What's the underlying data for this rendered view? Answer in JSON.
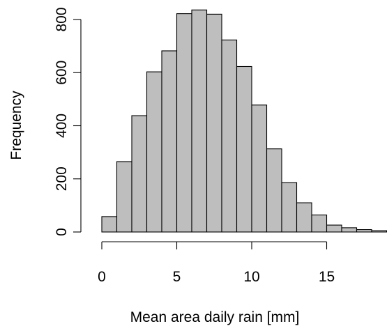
{
  "chart_data": {
    "type": "bar",
    "subtype": "histogram",
    "xlabel": "Mean area daily rain [mm]",
    "ylabel": "Frequency",
    "xlim": [
      0,
      18
    ],
    "ylim": [
      0,
      840
    ],
    "x_ticks": [
      0,
      5,
      10,
      15
    ],
    "x_tick_labels": [
      "0",
      "5",
      "10",
      "15"
    ],
    "y_ticks": [
      0,
      200,
      400,
      600,
      800
    ],
    "y_tick_labels": [
      "0",
      "200",
      "400",
      "600",
      "800"
    ],
    "grid": false,
    "legend": "none",
    "bar_color": "#bebebe",
    "bins": [
      {
        "x0": 0,
        "x1": 1,
        "count": 58
      },
      {
        "x0": 1,
        "x1": 2,
        "count": 265
      },
      {
        "x0": 2,
        "x1": 3,
        "count": 438
      },
      {
        "x0": 3,
        "x1": 4,
        "count": 603
      },
      {
        "x0": 4,
        "x1": 5,
        "count": 682
      },
      {
        "x0": 5,
        "x1": 6,
        "count": 822
      },
      {
        "x0": 6,
        "x1": 7,
        "count": 836
      },
      {
        "x0": 7,
        "x1": 8,
        "count": 820
      },
      {
        "x0": 8,
        "x1": 9,
        "count": 723
      },
      {
        "x0": 9,
        "x1": 10,
        "count": 623
      },
      {
        "x0": 10,
        "x1": 11,
        "count": 478
      },
      {
        "x0": 11,
        "x1": 12,
        "count": 313
      },
      {
        "x0": 12,
        "x1": 13,
        "count": 186
      },
      {
        "x0": 13,
        "x1": 14,
        "count": 110
      },
      {
        "x0": 14,
        "x1": 15,
        "count": 64
      },
      {
        "x0": 15,
        "x1": 16,
        "count": 26
      },
      {
        "x0": 16,
        "x1": 17,
        "count": 16
      },
      {
        "x0": 17,
        "x1": 18,
        "count": 9
      },
      {
        "x0": 18,
        "x1": 19,
        "count": 5
      }
    ]
  }
}
